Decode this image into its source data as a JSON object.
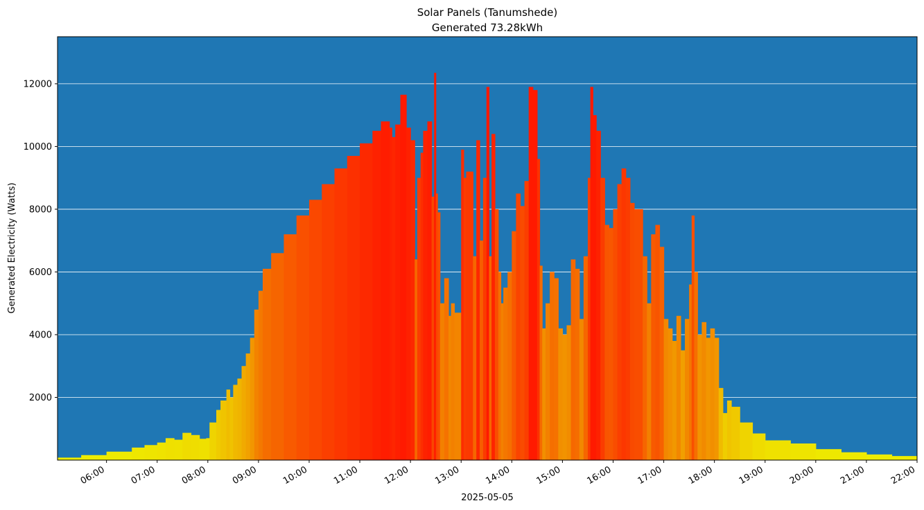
{
  "chart_data": {
    "type": "bar",
    "title": "Solar Panels (Tanumshede)",
    "subtitle": "Generated 73.28kWh",
    "xlabel": "2025-05-05",
    "ylabel": "Generated Electricity (Watts)",
    "x_range": [
      "05:02",
      "22:00"
    ],
    "ylim": [
      0,
      13500
    ],
    "y_ticks": [
      2000,
      4000,
      6000,
      8000,
      10000,
      12000
    ],
    "x_ticks": [
      "06:00",
      "07:00",
      "08:00",
      "09:00",
      "10:00",
      "11:00",
      "12:00",
      "13:00",
      "14:00",
      "15:00",
      "16:00",
      "17:00",
      "18:00",
      "19:00",
      "20:00",
      "21:00",
      "22:00"
    ],
    "grid": "horizontal",
    "colors": {
      "background": "#1f77b4",
      "grid": "#ffffff",
      "low": "#eef000",
      "mid": "#f28a00",
      "high": "#ff1a00"
    },
    "color_scale": "yellow (low output) to red (high output)",
    "x": [
      "05:02",
      "05:30",
      "06:00",
      "06:30",
      "06:45",
      "07:00",
      "07:10",
      "07:20",
      "07:30",
      "07:40",
      "07:50",
      "07:58",
      "08:02",
      "08:10",
      "08:15",
      "08:22",
      "08:26",
      "08:30",
      "08:35",
      "08:40",
      "08:45",
      "08:50",
      "08:55",
      "09:00",
      "09:05",
      "09:15",
      "09:30",
      "09:45",
      "10:00",
      "10:15",
      "10:30",
      "10:45",
      "11:00",
      "11:15",
      "11:25",
      "11:35",
      "11:38",
      "11:42",
      "11:48",
      "11:55",
      "12:00",
      "12:05",
      "12:08",
      "12:12",
      "12:15",
      "12:20",
      "12:25",
      "12:28",
      "12:30",
      "12:32",
      "12:35",
      "12:40",
      "12:45",
      "12:48",
      "12:52",
      "12:55",
      "13:00",
      "13:03",
      "13:06",
      "13:10",
      "13:14",
      "13:18",
      "13:22",
      "13:26",
      "13:30",
      "13:33",
      "13:36",
      "13:40",
      "13:44",
      "13:47",
      "13:50",
      "13:55",
      "14:00",
      "14:05",
      "14:10",
      "14:15",
      "14:20",
      "14:25",
      "14:30",
      "14:33",
      "14:36",
      "14:40",
      "14:45",
      "14:50",
      "14:55",
      "15:00",
      "15:05",
      "15:10",
      "15:15",
      "15:20",
      "15:25",
      "15:30",
      "15:33",
      "15:36",
      "15:40",
      "15:45",
      "15:50",
      "15:55",
      "16:00",
      "16:05",
      "16:10",
      "16:15",
      "16:20",
      "16:25",
      "16:30",
      "16:35",
      "16:40",
      "16:45",
      "16:50",
      "16:55",
      "17:00",
      "17:05",
      "17:10",
      "17:15",
      "17:20",
      "17:25",
      "17:30",
      "17:33",
      "17:36",
      "17:40",
      "17:45",
      "17:50",
      "17:55",
      "18:00",
      "18:05",
      "18:10",
      "18:15",
      "18:20",
      "18:30",
      "18:45",
      "19:00",
      "19:30",
      "20:00",
      "20:30",
      "21:00",
      "21:30",
      "22:00"
    ],
    "values": [
      80,
      160,
      270,
      400,
      480,
      560,
      700,
      650,
      870,
      800,
      680,
      700,
      1200,
      1600,
      1900,
      2250,
      2000,
      2400,
      2600,
      3000,
      3400,
      3900,
      4800,
      5400,
      6100,
      6600,
      7200,
      7800,
      8300,
      8800,
      9300,
      9700,
      10100,
      10500,
      10800,
      10600,
      10300,
      10700,
      11650,
      10600,
      10200,
      6400,
      9000,
      9800,
      10500,
      10800,
      8400,
      12350,
      8500,
      7900,
      5000,
      5800,
      4600,
      5000,
      4700,
      4700,
      9900,
      9000,
      9200,
      9200,
      6500,
      10200,
      7000,
      9000,
      11900,
      6500,
      10400,
      8000,
      6000,
      5000,
      5500,
      6000,
      7300,
      8500,
      8100,
      8900,
      11900,
      11800,
      9600,
      6200,
      4200,
      5000,
      6000,
      5800,
      4200,
      4000,
      4300,
      6400,
      6100,
      4500,
      6500,
      9000,
      11900,
      11000,
      10500,
      9000,
      7500,
      7400,
      8000,
      8800,
      9300,
      9000,
      8200,
      8000,
      8000,
      6500,
      5000,
      7200,
      7500,
      6800,
      4500,
      4200,
      3800,
      4600,
      3500,
      4500,
      5600,
      7800,
      6000,
      4000,
      4400,
      3900,
      4200,
      3900,
      2300,
      1500,
      1900,
      1700,
      1200,
      850,
      630,
      530,
      350,
      250,
      180,
      130,
      50
    ]
  }
}
